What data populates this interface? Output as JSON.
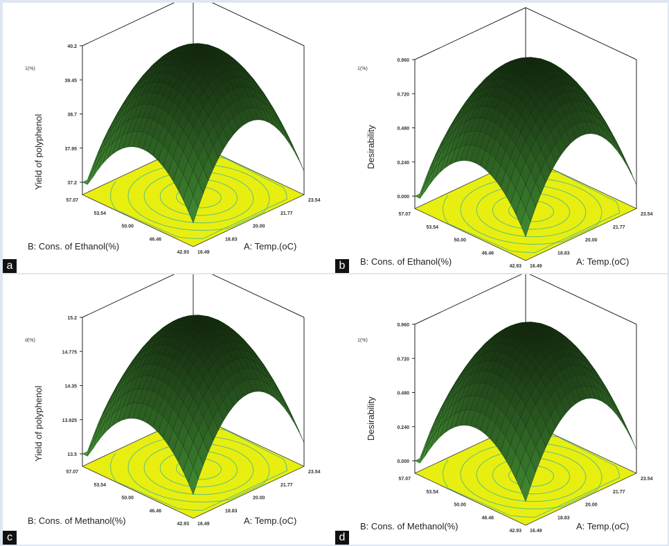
{
  "chart_data": [
    {
      "type": "surface",
      "panel": "a",
      "zlabel": "Yield of polyphenol",
      "zunit": "1(%)",
      "xlabel": "A: Temp.(oC)",
      "ylabel": "B: Cons. of Ethanol(%)",
      "ztick_labels": [
        "37.2",
        "37.95",
        "38.7",
        "39.45",
        "40.2"
      ],
      "xtick_labels": [
        "16.49",
        "18.83",
        "20.00",
        "21.77",
        "23.54"
      ],
      "ytick_labels": [
        "42.93",
        "46.46",
        "50.00",
        "53.54",
        "57.07"
      ],
      "zlim": [
        37.2,
        40.2
      ],
      "surface_peak": 40.2,
      "colors": {
        "surface": "#3f8f2c",
        "contour_plane": "#e8ef10"
      }
    },
    {
      "type": "surface",
      "panel": "b",
      "zlabel": "Desirability",
      "zunit": "1(%)",
      "xlabel": "A: Temp.(oC)",
      "ylabel": "B: Cons. of Ethanol(%)",
      "ztick_labels": [
        "0.000",
        "0.240",
        "0.480",
        "0.720",
        "0.960"
      ],
      "xtick_labels": [
        "16.49",
        "18.83",
        "20.00",
        "21.77",
        "23.54"
      ],
      "ytick_labels": [
        "42.93",
        "46.46",
        "50.00",
        "53.54",
        "57.07"
      ],
      "zlim": [
        0.0,
        0.96
      ],
      "surface_peak": 0.96,
      "colors": {
        "surface": "#3f8f2c",
        "contour_plane": "#e8ef10"
      }
    },
    {
      "type": "surface",
      "panel": "c",
      "zlabel": "Yield of polyphenol",
      "zunit": "d(%)",
      "xlabel": "A: Temp.(oC)",
      "ylabel": "B: Cons. of Methanol(%)",
      "ztick_labels": [
        "13.5",
        "13.925",
        "14.35",
        "14.775",
        "15.2"
      ],
      "xtick_labels": [
        "16.49",
        "18.83",
        "20.00",
        "21.77",
        "23.54"
      ],
      "ytick_labels": [
        "42.93",
        "46.46",
        "50.00",
        "53.54",
        "57.07"
      ],
      "zlim": [
        13.5,
        15.2
      ],
      "surface_peak": 15.2,
      "colors": {
        "surface": "#3f8f2c",
        "contour_plane": "#e8ef10"
      }
    },
    {
      "type": "surface",
      "panel": "d",
      "zlabel": "Desirability",
      "zunit": "1(%)",
      "xlabel": "A: Temp.(oC)",
      "ylabel": "B: Cons. of Methanol(%)",
      "ztick_labels": [
        "0.000",
        "0.240",
        "0.480",
        "0.720",
        "0.960"
      ],
      "xtick_labels": [
        "16.49",
        "18.83",
        "20.00",
        "21.77",
        "23.54"
      ],
      "ytick_labels": [
        "42.93",
        "46.46",
        "50.00",
        "53.54",
        "57.07"
      ],
      "zlim": [
        0.0,
        0.96
      ],
      "surface_peak": 0.96,
      "colors": {
        "surface": "#3f8f2c",
        "contour_plane": "#e8ef10"
      }
    }
  ]
}
